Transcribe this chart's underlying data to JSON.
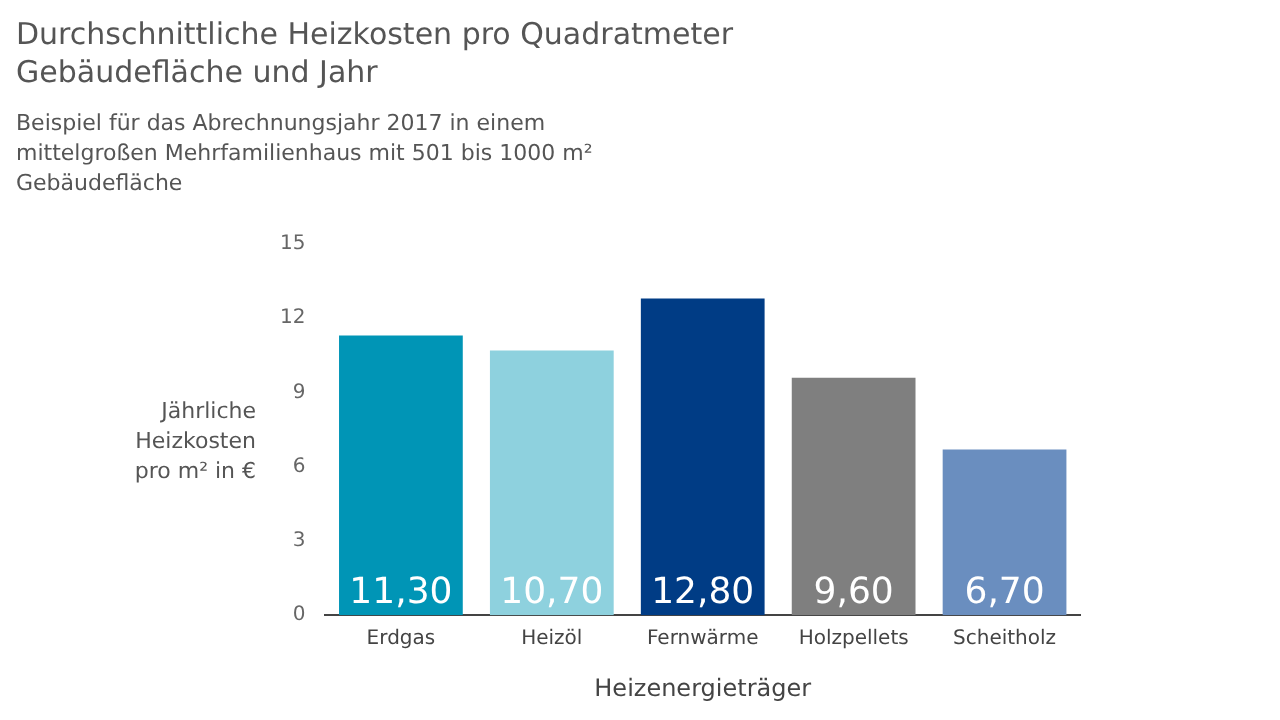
{
  "chart_data": {
    "type": "bar",
    "title": "Durchschnittliche Heizkosten pro Quadratmeter Gebäudefläche und Jahr",
    "subtitle": "Beispiel für das Abrechnungsjahr 2017 in einem mittelgroßen Mehrfamilienhaus mit 501 bis 1000 m² Gebäudefläche",
    "xlabel": "Heizenergieträger",
    "ylabel": "Jährliche Heizkosten pro m² in €",
    "categories": [
      "Erdgas",
      "Heizöl",
      "Fernwärme",
      "Holzpellets",
      "Scheitholz"
    ],
    "values": [
      11.3,
      10.7,
      12.8,
      9.6,
      6.7
    ],
    "value_labels": [
      "11,30",
      "10,70",
      "12,80",
      "9,60",
      "6,70"
    ],
    "colors": [
      "#0095b6",
      "#8ed1de",
      "#003c85",
      "#7f7f7f",
      "#6a8ebf"
    ],
    "ylim": [
      0,
      15
    ],
    "yticks": [
      0,
      3,
      6,
      9,
      12,
      15
    ],
    "grid": false,
    "legend": false
  }
}
